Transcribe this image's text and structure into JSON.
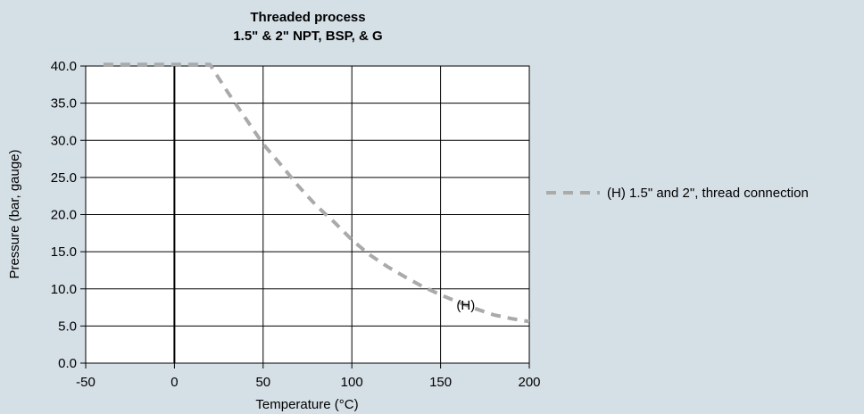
{
  "chart_data": {
    "type": "line",
    "title": [
      "Threaded process",
      "1.5\" & 2\" NPT, BSP, & G"
    ],
    "xlabel": "Temperature (°C)",
    "ylabel": "Pressure (bar, gauge)",
    "xlim": [
      -50,
      200
    ],
    "ylim": [
      0,
      40
    ],
    "x_ticks": [
      -50,
      0,
      50,
      100,
      150,
      200
    ],
    "x_tick_labels": [
      "-50",
      "0",
      "50",
      "100",
      "150",
      "200"
    ],
    "y_ticks": [
      0,
      5,
      10,
      15,
      20,
      25,
      30,
      35,
      40
    ],
    "y_tick_labels": [
      "0.0",
      "5.0",
      "10.0",
      "15.0",
      "20.0",
      "25.0",
      "30.0",
      "35.0",
      "40.0"
    ],
    "grid": "vertical-and-horizontal",
    "legend_position": "right",
    "series": [
      {
        "name": "(H) 1.5\" and 2\", thread connection",
        "style": "dashed",
        "color": "#aaaaaa",
        "x": [
          -40,
          0,
          20,
          30,
          40,
          50,
          60,
          70,
          80,
          90,
          100,
          110,
          120,
          130,
          140,
          150,
          160,
          170,
          180,
          190,
          200
        ],
        "y": [
          40.2,
          40.2,
          40.2,
          36.5,
          33.0,
          29.5,
          26.7,
          23.8,
          21.2,
          19.0,
          16.6,
          14.6,
          13.0,
          11.6,
          10.3,
          9.2,
          8.2,
          7.3,
          6.5,
          6.0,
          5.6
        ]
      }
    ],
    "annotations": [
      {
        "text": "(H)",
        "x": 168,
        "y": 7.8
      }
    ]
  }
}
